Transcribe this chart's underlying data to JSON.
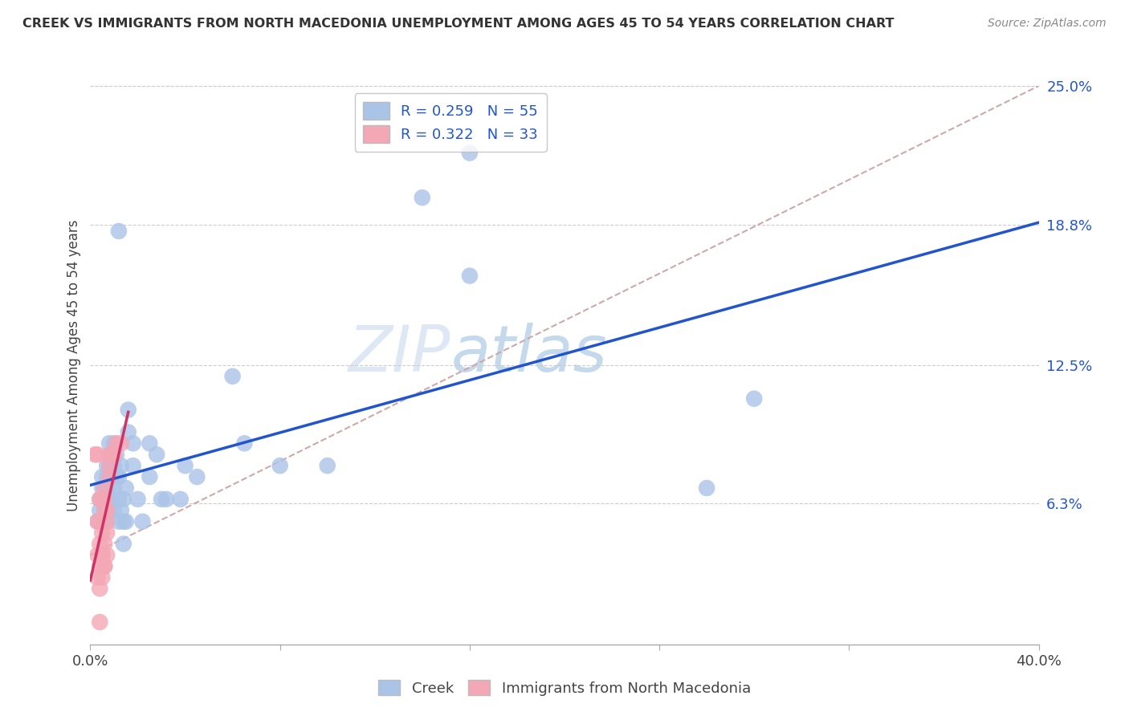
{
  "title": "CREEK VS IMMIGRANTS FROM NORTH MACEDONIA UNEMPLOYMENT AMONG AGES 45 TO 54 YEARS CORRELATION CHART",
  "source": "Source: ZipAtlas.com",
  "ylabel": "Unemployment Among Ages 45 to 54 years",
  "xlim": [
    0.0,
    0.4
  ],
  "ylim": [
    0.0,
    0.25
  ],
  "ytick_labels_right": [
    "25.0%",
    "18.8%",
    "12.5%",
    "6.3%"
  ],
  "ytick_vals_right": [
    0.25,
    0.188,
    0.125,
    0.063
  ],
  "grid_color": "#cccccc",
  "background_color": "#ffffff",
  "creek_color": "#aac4e8",
  "creek_line_color": "#2255cc",
  "immac_color": "#f4a7b5",
  "immac_line_color": "#cc3366",
  "trend_dash_color": "#ccaaaa",
  "creek_scatter": [
    [
      0.003,
      0.055
    ],
    [
      0.004,
      0.06
    ],
    [
      0.004,
      0.065
    ],
    [
      0.005,
      0.055
    ],
    [
      0.005,
      0.07
    ],
    [
      0.005,
      0.075
    ],
    [
      0.006,
      0.06
    ],
    [
      0.006,
      0.065
    ],
    [
      0.006,
      0.07
    ],
    [
      0.007,
      0.055
    ],
    [
      0.007,
      0.065
    ],
    [
      0.007,
      0.075
    ],
    [
      0.007,
      0.08
    ],
    [
      0.008,
      0.06
    ],
    [
      0.008,
      0.07
    ],
    [
      0.008,
      0.08
    ],
    [
      0.008,
      0.09
    ],
    [
      0.009,
      0.065
    ],
    [
      0.009,
      0.075
    ],
    [
      0.009,
      0.085
    ],
    [
      0.01,
      0.06
    ],
    [
      0.01,
      0.07
    ],
    [
      0.01,
      0.08
    ],
    [
      0.01,
      0.09
    ],
    [
      0.011,
      0.075
    ],
    [
      0.011,
      0.085
    ],
    [
      0.012,
      0.055
    ],
    [
      0.012,
      0.065
    ],
    [
      0.012,
      0.075
    ],
    [
      0.013,
      0.06
    ],
    [
      0.013,
      0.08
    ],
    [
      0.014,
      0.065
    ],
    [
      0.014,
      0.055
    ],
    [
      0.014,
      0.045
    ],
    [
      0.015,
      0.055
    ],
    [
      0.015,
      0.07
    ],
    [
      0.016,
      0.095
    ],
    [
      0.016,
      0.105
    ],
    [
      0.018,
      0.08
    ],
    [
      0.018,
      0.09
    ],
    [
      0.02,
      0.065
    ],
    [
      0.022,
      0.055
    ],
    [
      0.025,
      0.075
    ],
    [
      0.025,
      0.09
    ],
    [
      0.028,
      0.085
    ],
    [
      0.03,
      0.065
    ],
    [
      0.032,
      0.065
    ],
    [
      0.038,
      0.065
    ],
    [
      0.04,
      0.08
    ],
    [
      0.045,
      0.075
    ],
    [
      0.06,
      0.12
    ],
    [
      0.065,
      0.09
    ],
    [
      0.08,
      0.08
    ],
    [
      0.1,
      0.08
    ],
    [
      0.16,
      0.165
    ],
    [
      0.14,
      0.2
    ],
    [
      0.16,
      0.22
    ],
    [
      0.26,
      0.07
    ],
    [
      0.012,
      0.185
    ],
    [
      0.28,
      0.11
    ]
  ],
  "immac_scatter": [
    [
      0.002,
      0.085
    ],
    [
      0.003,
      0.085
    ],
    [
      0.003,
      0.055
    ],
    [
      0.003,
      0.04
    ],
    [
      0.003,
      0.03
    ],
    [
      0.004,
      0.025
    ],
    [
      0.004,
      0.035
    ],
    [
      0.004,
      0.01
    ],
    [
      0.004,
      0.065
    ],
    [
      0.004,
      0.055
    ],
    [
      0.004,
      0.045
    ],
    [
      0.005,
      0.04
    ],
    [
      0.005,
      0.03
    ],
    [
      0.005,
      0.065
    ],
    [
      0.005,
      0.05
    ],
    [
      0.005,
      0.04
    ],
    [
      0.006,
      0.035
    ],
    [
      0.006,
      0.07
    ],
    [
      0.006,
      0.06
    ],
    [
      0.006,
      0.045
    ],
    [
      0.006,
      0.035
    ],
    [
      0.006,
      0.065
    ],
    [
      0.007,
      0.055
    ],
    [
      0.007,
      0.04
    ],
    [
      0.007,
      0.06
    ],
    [
      0.007,
      0.05
    ],
    [
      0.008,
      0.075
    ],
    [
      0.008,
      0.08
    ],
    [
      0.008,
      0.085
    ],
    [
      0.009,
      0.085
    ],
    [
      0.01,
      0.085
    ],
    [
      0.011,
      0.09
    ],
    [
      0.013,
      0.09
    ]
  ]
}
